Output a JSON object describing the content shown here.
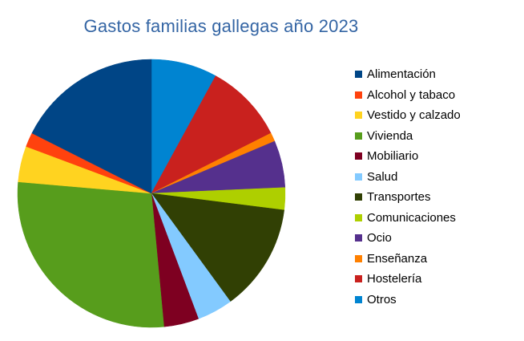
{
  "chart_data": {
    "type": "pie",
    "title": "Gastos familias gallegas año 2023",
    "legend_position": "right",
    "start_angle_deg": 0,
    "direction": "clockwise",
    "slices": [
      {
        "label": "Otros",
        "value": 8.3,
        "color": "#0084d1"
      },
      {
        "label": "Hostelería",
        "value": 10.0,
        "color": "#c9211e"
      },
      {
        "label": "Enseñanza",
        "value": 1.1,
        "color": "#ff8000"
      },
      {
        "label": "Ocio",
        "value": 5.9,
        "color": "#55308d"
      },
      {
        "label": "Comunicaciones",
        "value": 2.8,
        "color": "#aecf00"
      },
      {
        "label": "Transportes",
        "value": 13.5,
        "color": "#314004"
      },
      {
        "label": "Salud",
        "value": 4.5,
        "color": "#83caff"
      },
      {
        "label": "Mobiliario",
        "value": 4.4,
        "color": "#7e0021"
      },
      {
        "label": "Vivienda",
        "value": 29.0,
        "color": "#579d1c"
      },
      {
        "label": "Vestido y calzado",
        "value": 4.5,
        "color": "#ffd320"
      },
      {
        "label": "Alcohol y tabaco",
        "value": 1.8,
        "color": "#ff420e"
      },
      {
        "label": "Alimentación",
        "value": 18.3,
        "color": "#004586"
      }
    ],
    "legend_order": [
      "Alimentación",
      "Alcohol y tabaco",
      "Vestido y calzado",
      "Vivienda",
      "Mobiliario",
      "Salud",
      "Transportes",
      "Comunicaciones",
      "Ocio",
      "Enseñanza",
      "Hostelería",
      "Otros"
    ]
  }
}
